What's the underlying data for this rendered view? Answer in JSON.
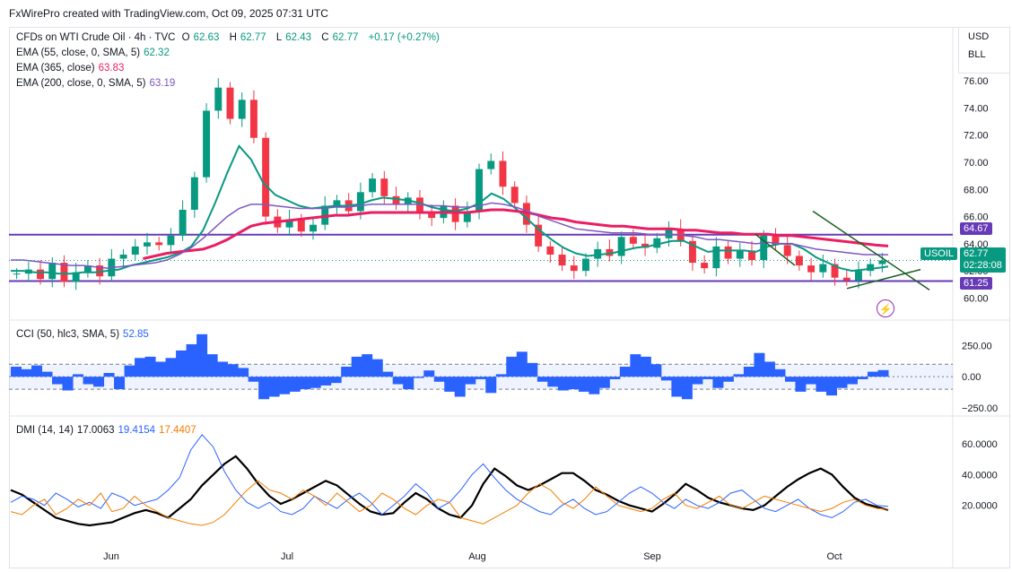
{
  "header": {
    "attribution": "FxWirePro created with TradingView.com, Oct 09, 2025 07:31 UTC"
  },
  "units": {
    "currency": "USD",
    "unit": "BLL"
  },
  "main_legend": {
    "symbol": "CFDs on WTI Crude Oil · 4h · TVC",
    "o_label": "O",
    "o_value": "62.63",
    "h_label": "H",
    "h_value": "62.77",
    "l_label": "L",
    "l_value": "62.43",
    "c_label": "C",
    "c_value": "62.77",
    "change": "+0.17 (+0.27%)",
    "ema55_label": "EMA (55, close, 0, SMA, 5)",
    "ema55_value": "62.32",
    "ema365_label": "EMA (365, close)",
    "ema365_value": "63.83",
    "ema200_label": "EMA (200, close, 0, SMA, 5)",
    "ema200_value": "63.19"
  },
  "cci_legend": {
    "label": "CCI (50, hlc3, SMA, 5)",
    "value": "52.85"
  },
  "dmi_legend": {
    "label": "DMI (14, 14)",
    "adx": "17.0063",
    "plus_di": "19.4154",
    "minus_di": "17.4407"
  },
  "price_tags": {
    "symbol": "USOIL",
    "last": "62.77",
    "countdown": "02:28:08",
    "resistance": "64.67",
    "support": "61.25"
  },
  "colors": {
    "up": "#089981",
    "down": "#f23645",
    "ema55": "#089981",
    "ema365": "#e91e63",
    "ema200": "#7e57c2",
    "level": "#673ab7",
    "triangle": "#1b5e20",
    "cci": "#2962ff",
    "adx": "#000000",
    "plus_di": "#2962ff",
    "minus_di": "#f57c00"
  },
  "chart_data": [
    {
      "type": "line",
      "title": "CFDs on WTI Crude Oil · 4h · TVC",
      "x_ticks": [
        "Jun",
        "Jul",
        "Aug",
        "Sep",
        "Oct"
      ],
      "y_ticks": [
        60.0,
        62.0,
        64.0,
        66.0,
        68.0,
        70.0,
        72.0,
        74.0,
        76.0
      ],
      "ylim": [
        59.5,
        77.0
      ],
      "horizontal_levels": [
        64.67,
        61.25
      ],
      "series": [
        {
          "name": "Price",
          "values": [
            61.8,
            62.1,
            61.4,
            62.6,
            61.2,
            61.9,
            62.4,
            61.6,
            62.9,
            63.2,
            63.8,
            64.1,
            63.9,
            64.6,
            66.5,
            68.9,
            73.8,
            75.5,
            73.2,
            74.6,
            71.8,
            66.0,
            65.2,
            65.8,
            64.9,
            65.4,
            66.8,
            67.2,
            66.4,
            67.8,
            68.8,
            67.5,
            66.9,
            67.4,
            66.2,
            65.9,
            66.8,
            65.6,
            66.4,
            69.5,
            70.1,
            68.2,
            67.0,
            65.4,
            63.8,
            63.2,
            62.4,
            62.0,
            62.9,
            63.6,
            63.1,
            64.5,
            64.0,
            63.7,
            64.4,
            65.1,
            64.2,
            62.6,
            62.2,
            63.8,
            62.9,
            63.5,
            62.8,
            64.6,
            63.9,
            63.1,
            62.4,
            61.9,
            62.5,
            61.5,
            61.3,
            62.0,
            62.5,
            62.77
          ]
        },
        {
          "name": "EMA (55, close, 0, SMA, 5)",
          "values": [
            62.0,
            62.0,
            61.9,
            61.9,
            61.8,
            61.8,
            61.9,
            61.9,
            62.0,
            62.1,
            62.4,
            62.6,
            62.8,
            63.0,
            63.3,
            63.8,
            65.0,
            67.0,
            69.2,
            71.2,
            70.2,
            68.5,
            67.6,
            67.2,
            66.8,
            66.6,
            66.7,
            66.8,
            66.8,
            66.9,
            67.2,
            67.4,
            67.3,
            67.2,
            67.0,
            66.7,
            66.5,
            66.4,
            66.6,
            67.0,
            67.7,
            67.3,
            66.6,
            65.8,
            65.0,
            64.3,
            63.7,
            63.3,
            63.1,
            63.2,
            63.3,
            63.5,
            63.7,
            63.8,
            64.0,
            64.2,
            64.2,
            63.8,
            63.4,
            63.5,
            63.5,
            63.5,
            63.4,
            63.8,
            64.0,
            64.0,
            63.6,
            63.0,
            62.6,
            62.2,
            62.0,
            62.1,
            62.2,
            62.32
          ]
        },
        {
          "name": "EMA (365, close)",
          "values": [
            null,
            null,
            null,
            null,
            null,
            null,
            null,
            null,
            null,
            null,
            null,
            62.9,
            63.1,
            63.3,
            63.4,
            63.5,
            63.6,
            63.9,
            64.3,
            64.8,
            65.3,
            65.5,
            65.6,
            65.7,
            65.8,
            65.9,
            66.0,
            66.1,
            66.1,
            66.2,
            66.3,
            66.3,
            66.3,
            66.3,
            66.3,
            66.3,
            66.3,
            66.3,
            66.3,
            66.4,
            66.5,
            66.5,
            66.4,
            66.3,
            66.1,
            65.9,
            65.8,
            65.6,
            65.5,
            65.4,
            65.3,
            65.3,
            65.2,
            65.1,
            65.1,
            65.1,
            65.0,
            65.0,
            64.9,
            64.8,
            64.8,
            64.7,
            64.7,
            64.7,
            64.6,
            64.6,
            64.5,
            64.4,
            64.3,
            64.2,
            64.1,
            64.0,
            63.9,
            63.83
          ]
        },
        {
          "name": "EMA (200, close, 0, SMA, 5)",
          "values": [
            62.8,
            62.8,
            62.7,
            62.6,
            62.5,
            62.4,
            62.4,
            62.3,
            62.2,
            62.3,
            62.4,
            62.5,
            62.6,
            62.8,
            63.2,
            63.7,
            64.4,
            65.2,
            66.0,
            66.6,
            66.9,
            66.9,
            66.8,
            66.7,
            66.6,
            66.6,
            66.6,
            66.7,
            66.7,
            66.8,
            66.9,
            66.9,
            66.9,
            66.9,
            66.9,
            66.8,
            66.8,
            66.7,
            66.7,
            66.8,
            67.0,
            66.9,
            66.7,
            66.4,
            66.0,
            65.7,
            65.4,
            65.1,
            65.0,
            64.9,
            64.8,
            64.8,
            64.8,
            64.7,
            64.7,
            64.7,
            64.6,
            64.5,
            64.3,
            64.3,
            64.2,
            64.1,
            64.0,
            64.1,
            64.0,
            64.0,
            63.8,
            63.6,
            63.5,
            63.4,
            63.3,
            63.2,
            63.2,
            63.19
          ]
        }
      ]
    },
    {
      "type": "area",
      "title": "CCI (50, hlc3, SMA, 5)",
      "y_ticks": [
        250.0,
        0.0,
        -250.0
      ],
      "ylim": [
        -300,
        360
      ],
      "bands": [
        100,
        -100
      ],
      "series": [
        {
          "name": "CCI",
          "values": [
            80,
            60,
            90,
            40,
            -60,
            -110,
            20,
            -60,
            -80,
            30,
            -100,
            90,
            150,
            160,
            120,
            150,
            210,
            260,
            340,
            180,
            120,
            100,
            70,
            -40,
            -180,
            -160,
            -140,
            -120,
            -100,
            -90,
            -70,
            -50,
            80,
            160,
            180,
            140,
            40,
            -60,
            -100,
            -10,
            50,
            -40,
            -120,
            -160,
            -60,
            -20,
            -130,
            20,
            160,
            200,
            110,
            -40,
            -80,
            -110,
            -100,
            -120,
            -140,
            -90,
            -20,
            80,
            180,
            160,
            100,
            -30,
            -160,
            -180,
            -60,
            -20,
            -90,
            -40,
            20,
            80,
            190,
            120,
            60,
            -40,
            -120,
            -60,
            -120,
            -150,
            -90,
            -60,
            -20,
            40,
            52.85
          ]
        }
      ]
    },
    {
      "type": "line",
      "title": "DMI (14, 14)",
      "y_ticks": [
        60.0,
        40.0,
        20.0
      ],
      "ylim": [
        0,
        70
      ],
      "series": [
        {
          "name": "ADX",
          "values": [
            30,
            27,
            22,
            17,
            12,
            10,
            8,
            7,
            8,
            9,
            12,
            15,
            17,
            15,
            12,
            18,
            24,
            33,
            40,
            47,
            52,
            44,
            34,
            26,
            21,
            24,
            28,
            32,
            36,
            33,
            27,
            21,
            16,
            14,
            15,
            22,
            28,
            24,
            18,
            14,
            12,
            20,
            34,
            44,
            39,
            33,
            30,
            33,
            37,
            41,
            41,
            36,
            30,
            27,
            23,
            20,
            18,
            16,
            21,
            27,
            34,
            30,
            25,
            22,
            20,
            18,
            17,
            20,
            26,
            32,
            37,
            41,
            44,
            40,
            32,
            25,
            21,
            19,
            17.0063
          ]
        },
        {
          "name": "+DI",
          "values": [
            22,
            26,
            24,
            20,
            28,
            24,
            19,
            22,
            18,
            28,
            25,
            20,
            22,
            24,
            30,
            38,
            56,
            66,
            58,
            42,
            30,
            22,
            18,
            22,
            16,
            14,
            18,
            26,
            22,
            18,
            24,
            28,
            22,
            14,
            20,
            26,
            34,
            28,
            18,
            22,
            30,
            40,
            47,
            38,
            30,
            24,
            20,
            16,
            14,
            20,
            24,
            18,
            14,
            16,
            22,
            28,
            32,
            28,
            22,
            18,
            24,
            20,
            18,
            22,
            28,
            30,
            24,
            18,
            16,
            20,
            24,
            18,
            14,
            12,
            16,
            22,
            24,
            20,
            19.4154
          ]
        },
        {
          "name": "-DI",
          "values": [
            16,
            14,
            20,
            24,
            14,
            18,
            24,
            20,
            28,
            16,
            18,
            26,
            20,
            16,
            12,
            10,
            8,
            7,
            9,
            14,
            22,
            30,
            36,
            30,
            28,
            24,
            30,
            26,
            20,
            28,
            22,
            16,
            20,
            28,
            24,
            18,
            14,
            20,
            24,
            22,
            12,
            10,
            8,
            12,
            16,
            20,
            28,
            34,
            30,
            22,
            18,
            24,
            32,
            26,
            20,
            18,
            16,
            18,
            24,
            28,
            20,
            18,
            22,
            26,
            20,
            18,
            22,
            26,
            24,
            22,
            20,
            18,
            16,
            18,
            22,
            24,
            20,
            18,
            17.4407
          ]
        }
      ]
    }
  ]
}
